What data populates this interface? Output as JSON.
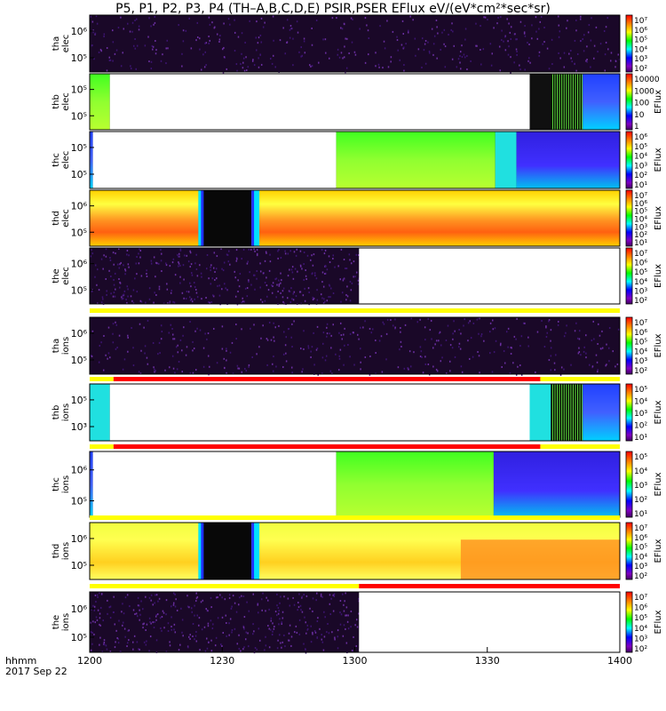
{
  "title": "P5, P1, P2, P3, P4 (TH–A,B,C,D,E) PSIR,PSER EFlux eV/(eV*cm²*sec*sr)",
  "xaxis": {
    "ticks": [
      "1200",
      "1230",
      "1300",
      "1330",
      "1400"
    ],
    "label_line1": "hhmm",
    "label_line2": "2017 Sep 22"
  },
  "colorbar_unit": "EFlux",
  "chart_data": {
    "type": "heatmap",
    "x_range_hhmm": [
      "1200",
      "1400"
    ],
    "panels": [
      {
        "name": "tha-elec",
        "ylabel": [
          "tha",
          "elec"
        ],
        "yticks": [
          "10⁶",
          "10⁵"
        ],
        "cbar": [
          "10⁷",
          "10⁶",
          "10⁵",
          "10⁴",
          "10³",
          "10²"
        ],
        "cbar_has_unit": false,
        "segments": [
          {
            "from": 0,
            "to": 1,
            "kind": "noise"
          }
        ]
      },
      {
        "name": "thb-elec",
        "ylabel": [
          "thb",
          "elec"
        ],
        "yticks": [
          "10⁵",
          "10⁵"
        ],
        "cbar": [
          "10000",
          "1000",
          "100",
          "10",
          "1"
        ],
        "cbar_has_unit": true,
        "segments": [
          {
            "from": 0,
            "to": 0.038,
            "kind": "green"
          },
          {
            "from": 0.038,
            "to": 0.83,
            "kind": "blank"
          },
          {
            "from": 0.83,
            "to": 0.87,
            "kind": "black"
          },
          {
            "from": 0.87,
            "to": 0.93,
            "kind": "hatch"
          },
          {
            "from": 0.93,
            "to": 1,
            "kind": "blue"
          }
        ]
      },
      {
        "name": "thc-elec",
        "ylabel": [
          "thc",
          "elec"
        ],
        "yticks": [
          "10⁵",
          "10⁵"
        ],
        "cbar": [
          "10⁶",
          "10⁵",
          "10⁴",
          "10³",
          "10²",
          "10¹"
        ],
        "cbar_has_unit": true,
        "segments": [
          {
            "from": 0,
            "to": 0.006,
            "kind": "blue"
          },
          {
            "from": 0.006,
            "to": 0.465,
            "kind": "blank"
          },
          {
            "from": 0.465,
            "to": 0.765,
            "kind": "green"
          },
          {
            "from": 0.765,
            "to": 0.805,
            "kind": "cyan"
          },
          {
            "from": 0.805,
            "to": 1,
            "kind": "purpleblue"
          }
        ]
      },
      {
        "name": "thd-elec",
        "ylabel": [
          "thd",
          "elec"
        ],
        "yticks": [
          "10⁶",
          "10⁵"
        ],
        "cbar": [
          "10⁷",
          "10⁶",
          "10⁵",
          "10⁴",
          "10³",
          "10²",
          "10¹"
        ],
        "cbar_has_unit": true,
        "segments": [
          {
            "from": 0,
            "to": 1,
            "kind": "spectrum"
          }
        ]
      },
      {
        "name": "the-elec",
        "ylabel": [
          "the",
          "elec"
        ],
        "yticks": [
          "10⁶",
          "10⁵"
        ],
        "cbar": [
          "10⁷",
          "10⁶",
          "10⁵",
          "10⁴",
          "10³",
          "10²"
        ],
        "cbar_has_unit": true,
        "segments": [
          {
            "from": 0,
            "to": 0.508,
            "kind": "noise"
          },
          {
            "from": 0.508,
            "to": 1,
            "kind": "blank"
          }
        ]
      },
      {
        "name": "tha-ions",
        "ylabel": [
          "tha",
          "ions"
        ],
        "yticks": [
          "10⁶",
          "10⁵"
        ],
        "cbar": [
          "10⁷",
          "10⁶",
          "10⁵",
          "10⁴",
          "10³",
          "10²"
        ],
        "cbar_has_unit": true,
        "segments": [
          {
            "from": 0,
            "to": 1,
            "kind": "noise"
          }
        ]
      },
      {
        "name": "thb-ions",
        "ylabel": [
          "thb",
          "ions"
        ],
        "yticks": [
          "10⁵",
          "10³"
        ],
        "cbar": [
          "10⁵",
          "10⁴",
          "10³",
          "10²",
          "10¹"
        ],
        "cbar_has_unit": true,
        "segments": [
          {
            "from": 0,
            "to": 0.038,
            "kind": "cyan"
          },
          {
            "from": 0.038,
            "to": 0.83,
            "kind": "blank"
          },
          {
            "from": 0.83,
            "to": 0.87,
            "kind": "cyan"
          },
          {
            "from": 0.87,
            "to": 0.93,
            "kind": "hatch"
          },
          {
            "from": 0.93,
            "to": 1,
            "kind": "blue"
          }
        ]
      },
      {
        "name": "thc-ions",
        "ylabel": [
          "thc",
          "ions"
        ],
        "yticks": [
          "10⁶",
          "10⁵"
        ],
        "cbar": [
          "10⁵",
          "10⁴",
          "10³",
          "10²",
          "10¹"
        ],
        "cbar_has_unit": true,
        "segments": [
          {
            "from": 0,
            "to": 0.006,
            "kind": "blue"
          },
          {
            "from": 0.006,
            "to": 0.465,
            "kind": "blank"
          },
          {
            "from": 0.465,
            "to": 0.762,
            "kind": "green"
          },
          {
            "from": 0.762,
            "to": 1,
            "kind": "purpleblue"
          }
        ]
      },
      {
        "name": "thd-ions",
        "ylabel": [
          "thd",
          "ions"
        ],
        "yticks": [
          "10⁶",
          "10⁵"
        ],
        "cbar": [
          "10⁷",
          "10⁶",
          "10⁵",
          "10⁴",
          "10³",
          "10²"
        ],
        "cbar_has_unit": true,
        "segments": [
          {
            "from": 0,
            "to": 1,
            "kind": "spectrum2"
          }
        ]
      },
      {
        "name": "the-ions",
        "ylabel": [
          "the",
          "ions"
        ],
        "yticks": [
          "10⁶",
          "10⁵"
        ],
        "cbar": [
          "10⁷",
          "10⁶",
          "10⁵",
          "10⁴",
          "10³",
          "10²"
        ],
        "cbar_has_unit": true,
        "segments": [
          {
            "from": 0,
            "to": 0.508,
            "kind": "noise"
          },
          {
            "from": 0.508,
            "to": 1,
            "kind": "blank"
          }
        ]
      }
    ],
    "mode_bars": [
      {
        "after": "the-elec",
        "segments": [
          {
            "from": 0,
            "to": 1,
            "color": "#ffff00"
          }
        ]
      },
      {
        "after": "tha-ions",
        "segments": [
          {
            "from": 0,
            "to": 0.045,
            "color": "#ffff00"
          },
          {
            "from": 0.045,
            "to": 0.85,
            "color": "#ff0000"
          },
          {
            "from": 0.85,
            "to": 1,
            "color": "#ffff00"
          }
        ]
      },
      {
        "after": "thb-ions",
        "segments": [
          {
            "from": 0,
            "to": 0.045,
            "color": "#ffff00"
          },
          {
            "from": 0.045,
            "to": 0.85,
            "color": "#ff0000"
          },
          {
            "from": 0.85,
            "to": 1,
            "color": "#ffff00"
          }
        ]
      },
      {
        "after": "thc-ions",
        "segments": [
          {
            "from": 0,
            "to": 1,
            "color": "#ffff00"
          }
        ]
      },
      {
        "after": "thd-ions",
        "segments": [
          {
            "from": 0,
            "to": 0.508,
            "color": "#ffff00"
          },
          {
            "from": 0.508,
            "to": 1,
            "color": "#ff0000"
          }
        ]
      }
    ]
  }
}
